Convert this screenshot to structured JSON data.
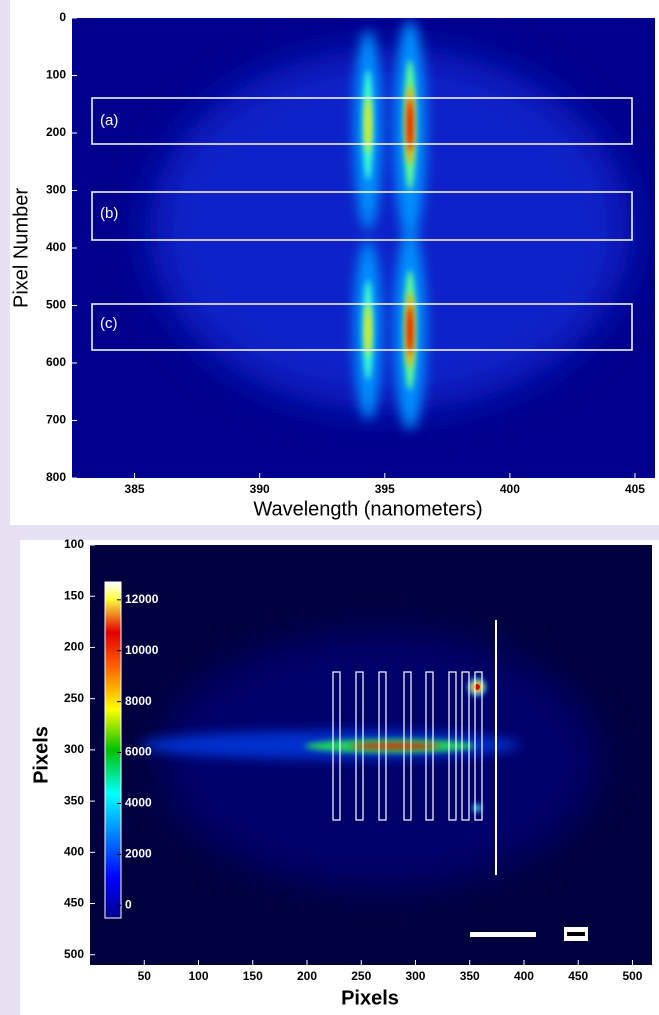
{
  "chart_data": [
    {
      "type": "heatmap",
      "x_label": "Wavelength (nanometers)",
      "y_label": "Pixel Number",
      "xlim": [
        382.5,
        405.8
      ],
      "xticks": [
        385,
        390,
        395,
        400,
        405
      ],
      "ylim": [
        800,
        0
      ],
      "yticks": [
        0,
        100,
        200,
        300,
        400,
        500,
        600,
        700,
        800
      ],
      "annotations": [
        "(a)",
        "(b)",
        "(c)"
      ]
    },
    {
      "type": "heatmap",
      "x_label": "Pixels",
      "y_label": "Pixels",
      "xlim": [
        0,
        518
      ],
      "xticks": [
        50,
        100,
        150,
        200,
        250,
        300,
        350,
        400,
        450,
        500
      ],
      "ylim": [
        510,
        100
      ],
      "yticks": [
        100,
        150,
        200,
        250,
        300,
        350,
        400,
        450,
        500
      ],
      "colorbar": {
        "colormap": "jet",
        "lim": [
          -500,
          12700
        ],
        "ticks": [
          0,
          2000,
          4000,
          6000,
          8000,
          10000,
          12000
        ]
      }
    }
  ]
}
